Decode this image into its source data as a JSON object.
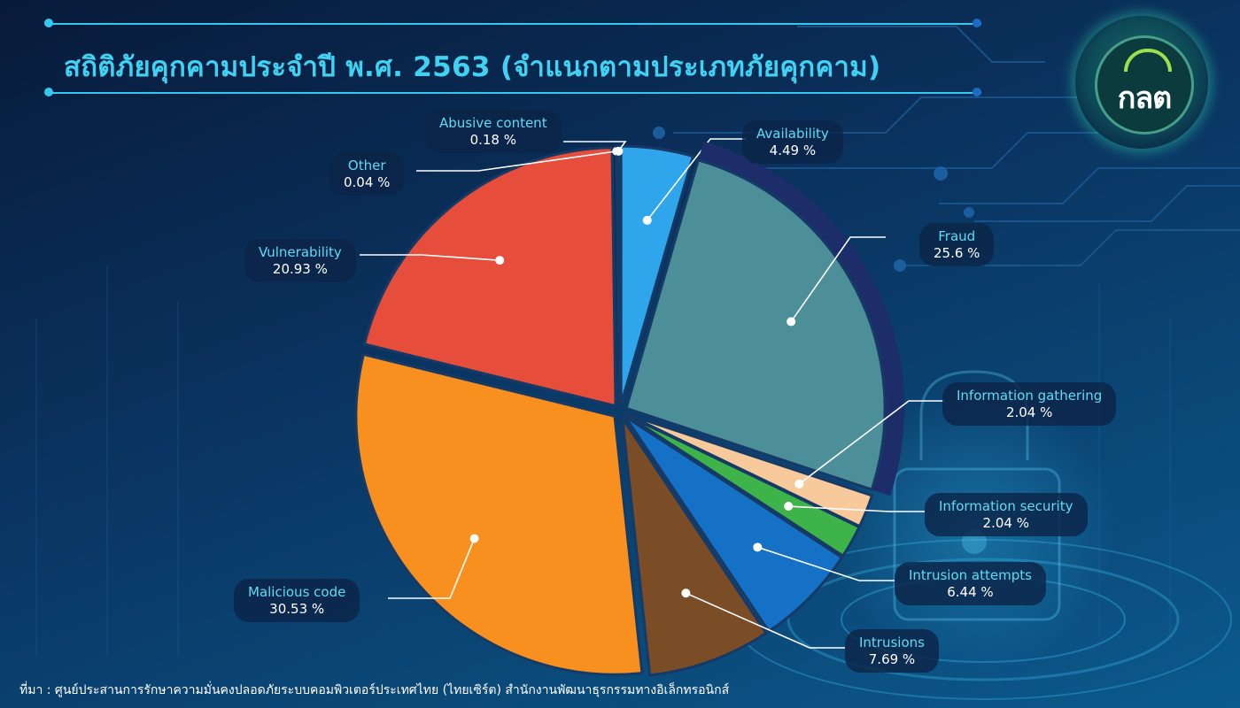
{
  "title": "สถิติภัยคุกคามประจำปี พ.ศ. 2563 (จำแนกตามประเภทภัยคุกคาม)",
  "logo_text": "กลต",
  "source": "ที่มา : ศูนย์ประสานการรักษาความมั่นคงปลอดภัยระบบคอมพิวเตอร์ประเทศไทย (ไทยเซิร์ต) สำนักงานพัฒนาธุรกรรมทางอิเล็กทรอนิกส์",
  "colors": {
    "title": "#3fd2f2",
    "label_name": "#5fdcf4",
    "label_value": "#ffffff",
    "label_bg": "#0c2448",
    "logo_accent": "#9ee04a"
  },
  "chart_data": {
    "type": "pie",
    "title": "สถิติภัยคุกคามประจำปี พ.ศ. 2563 (จำแนกตามประเภทภัยคุกคาม)",
    "unit": "%",
    "slices": [
      {
        "name": "Availability",
        "value": 4.49,
        "label": "4.49 %",
        "color": "#2fa6ec"
      },
      {
        "name": "Fraud",
        "value": 25.6,
        "label": "25.6 %",
        "color": "#4c8f99"
      },
      {
        "name": "Information gathering",
        "value": 2.04,
        "label": "2.04 %",
        "color": "#f8c99a"
      },
      {
        "name": "Information security",
        "value": 2.04,
        "label": "2.04 %",
        "color": "#3db34a"
      },
      {
        "name": "Intrusion attempts",
        "value": 6.44,
        "label": "6.44 %",
        "color": "#1571c6"
      },
      {
        "name": "Intrusions",
        "value": 7.69,
        "label": "7.69 %",
        "color": "#7a4d26"
      },
      {
        "name": "Malicious code",
        "value": 30.53,
        "label": "30.53 %",
        "color": "#f7901e"
      },
      {
        "name": "Vulnerability",
        "value": 20.93,
        "label": "20.93 %",
        "color": "#e64d3a"
      },
      {
        "name": "Other",
        "value": 0.04,
        "label": "0.04 %",
        "color": "#f2e24b"
      },
      {
        "name": "Abusive content",
        "value": 0.18,
        "label": "0.18 %",
        "color": "#e0307a"
      }
    ],
    "highlighted_slice": "Fraud",
    "legend": "none (callout labels around the pie)"
  }
}
